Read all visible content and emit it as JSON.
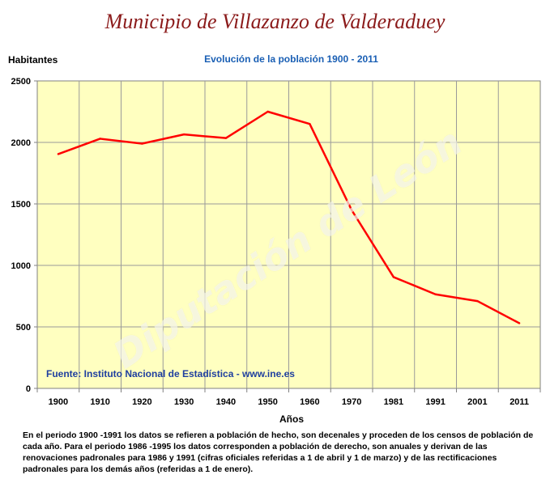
{
  "page": {
    "title": "Municipio de Villazanzo de Valderaduey",
    "source": "Fuente: Instituto Nacional de Estadística - www.ine.es",
    "note": "En el periodo 1900 -1991 los datos se refieren a población de hecho, son decenales y proceden de los censos de población de cada año. Para el periodo 1986 -1995 los datos corresponden a población de derecho, son anuales y derivan de las renovaciones padronales para 1986 y 1991 (cifras oficiales referidas a 1 de abril y 1 de marzo) y de las rectificaciones padronales para los demás años (referidas a 1 de enero).",
    "watermark": "Diputación de León"
  },
  "chart_data": {
    "type": "line",
    "title": "Evolución de la población 1900 - 2011",
    "xlabel": "Años",
    "ylabel": "Habitantes",
    "categories": [
      "1900",
      "1910",
      "1920",
      "1930",
      "1940",
      "1950",
      "1960",
      "1970",
      "1981",
      "1991",
      "2001",
      "2011"
    ],
    "series": [
      {
        "values": [
          1905,
          2030,
          1990,
          2065,
          2035,
          2250,
          2150,
          1450,
          905,
          765,
          710,
          530
        ]
      }
    ],
    "ylim": [
      0,
      2500
    ],
    "yticks": [
      0,
      500,
      1000,
      1500,
      2000,
      2500
    ],
    "grid": true,
    "colors": {
      "line": "#ff0000",
      "plot_bg": "#ffffc0",
      "grid": "#9a9a9a",
      "title": "#8b1a1a",
      "subtitle": "#1a5fb4"
    }
  }
}
